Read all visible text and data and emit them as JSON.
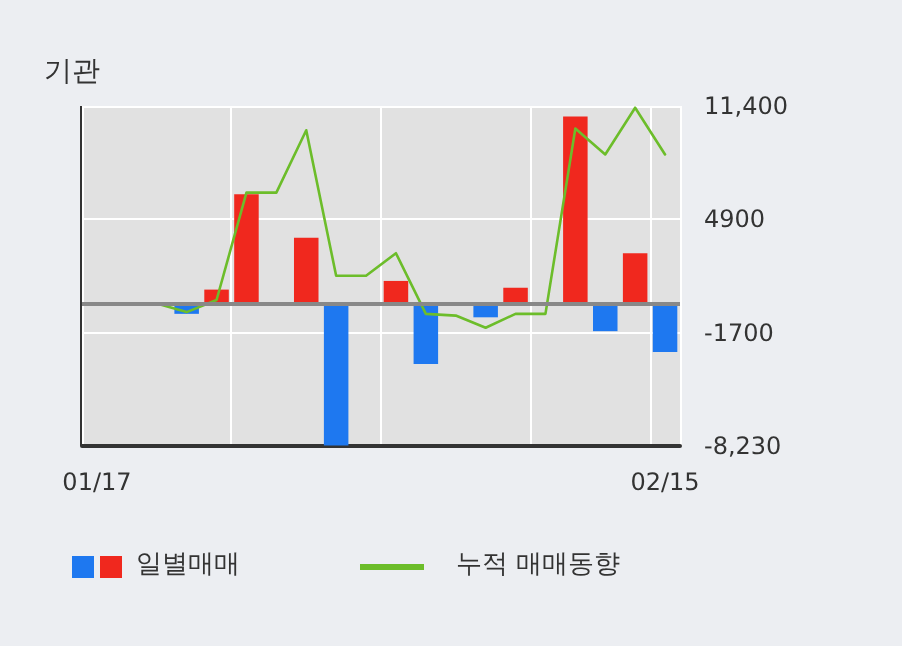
{
  "chart_data": {
    "type": "bar",
    "title": "기관",
    "categories": [
      "01/17",
      null,
      null,
      null,
      null,
      null,
      null,
      null,
      null,
      null,
      null,
      null,
      null,
      null,
      null,
      null,
      null,
      null,
      null,
      "02/15"
    ],
    "series": [
      {
        "name": "일별매매",
        "colors": [
          "#1e78f0",
          "#1e78f0",
          "#1e78f0",
          "#1e78f0",
          "#f0281e",
          "#f0281e",
          "#1e78f0",
          "#f0281e",
          "#1e78f0",
          "#1e78f0",
          "#f0281e",
          "#1e78f0",
          "#1e78f0",
          "#1e78f0",
          "#f0281e",
          "#1e78f0",
          "#f0281e",
          "#1e78f0",
          "#f0281e",
          "#1e78f0"
        ],
        "values": [
          0,
          0,
          0,
          -600,
          800,
          6300,
          0,
          3800,
          -8200,
          0,
          1300,
          -3500,
          0,
          -800,
          900,
          0,
          10800,
          -1600,
          2900,
          -2800
        ]
      },
      {
        "name": "누적 매매동향",
        "type": "line",
        "color": "#6cbd2a",
        "values": [
          0,
          0,
          0,
          -500,
          200,
          6400,
          6400,
          10000,
          1600,
          1600,
          2900,
          -600,
          -700,
          -1400,
          -600,
          -600,
          10100,
          8600,
          11300,
          8600
        ]
      }
    ],
    "ylim": [
      -8230,
      11400
    ],
    "yticks": [
      {
        "value": 11400,
        "label": "11,400"
      },
      4900,
      -1700,
      {
        "value": -8230,
        "label": "-8,230"
      }
    ],
    "ref_lines": [
      {
        "axis": "y",
        "value": 0,
        "color": "#888888"
      }
    ],
    "grid": true,
    "legend": "bottom",
    "marker": "none",
    "line_style": "solid"
  }
}
